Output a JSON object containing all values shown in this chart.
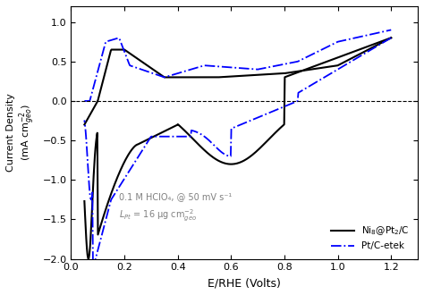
{
  "title": "",
  "xlabel": "E/RHE (Volts)",
  "ylabel": "Current Density\n(mA cm⁻²ₐₑₒ)",
  "xlim": [
    0.0,
    1.3
  ],
  "ylim": [
    -2.0,
    1.2
  ],
  "xticks": [
    0.0,
    0.2,
    0.4,
    0.6,
    0.8,
    1.0,
    1.2
  ],
  "yticks": [
    -2.0,
    -1.5,
    -1.0,
    -0.5,
    0.0,
    0.5,
    1.0
  ],
  "annotation_line1": "0.1 M HClO₄, @ 50 mV s⁻¹",
  "annotation_line2": "Lₚₜ = 16 μg cm⁻²ₐₑₒ",
  "legend_label_1": "Ni₈@Pt₂/C",
  "legend_label_2": "Pt/C-etek",
  "line1_color": "black",
  "line2_color": "blue",
  "background_color": "white"
}
